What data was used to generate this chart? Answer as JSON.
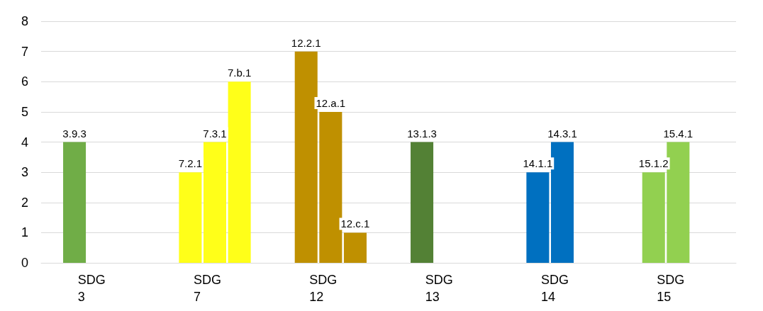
{
  "chart_data": {
    "type": "bar",
    "categories": [
      "SDG\n3",
      "SDG\n7",
      "SDG\n12",
      "SDG\n13",
      "SDG\n14",
      "SDG\n15"
    ],
    "series": [
      {
        "values": [
          4,
          3,
          7,
          4,
          3,
          3
        ],
        "colors": [
          "#70ad47",
          "#ffff19",
          "#bf9000",
          "#538135",
          "#0070c0",
          "#92d050"
        ]
      },
      {
        "values": [
          null,
          4,
          5,
          null,
          4,
          4
        ],
        "colors": [
          null,
          "#ffff19",
          "#bf9000",
          null,
          "#0070c0",
          "#92d050"
        ]
      },
      {
        "values": [
          null,
          6,
          1,
          null,
          null,
          null
        ],
        "colors": [
          null,
          "#ffff19",
          "#bf9000",
          null,
          null,
          null
        ]
      }
    ],
    "annotations": [
      "3.9.3",
      "7.2.1",
      "7.3.1",
      "7.b.1",
      "12.2.1",
      "12.a.1",
      "12.c.1",
      "13.1.3",
      "14.1.1",
      "14.3.1",
      "15.1.2",
      "15.4.1"
    ],
    "ylim": [
      0,
      8
    ],
    "yticks": [
      0,
      1,
      2,
      3,
      4,
      5,
      6,
      7,
      8
    ],
    "grid": "y"
  }
}
